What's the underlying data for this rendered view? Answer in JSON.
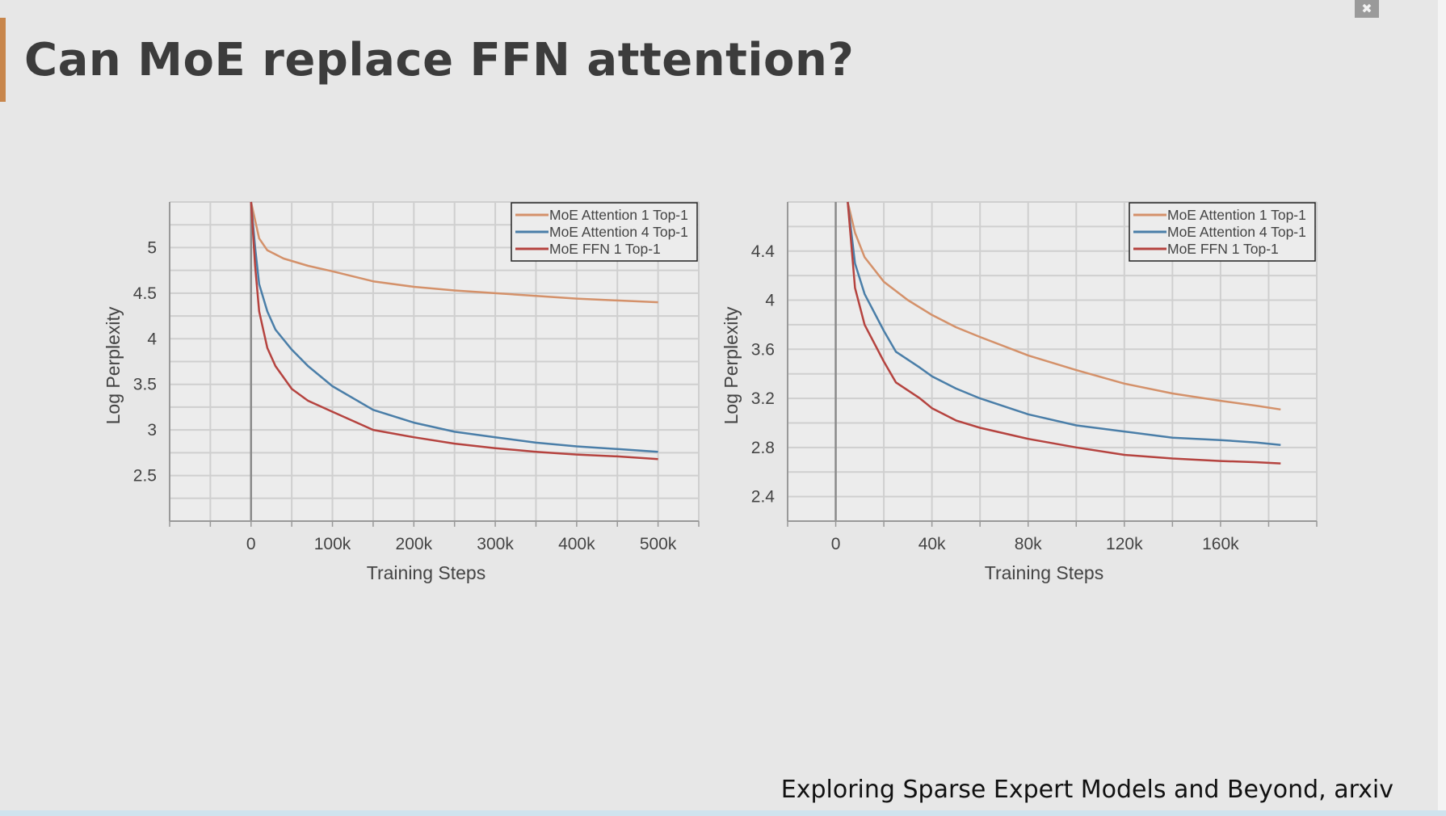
{
  "slide": {
    "title": "Can MoE replace FFN attention?",
    "citation": "Exploring Sparse Expert Models and Beyond, arxiv",
    "accent_color": "#c8864c",
    "fullscreen_icon": "exit-fullscreen-icon"
  },
  "chart_data": [
    {
      "type": "line",
      "xlabel": "Training Steps",
      "ylabel": "Log Perplexity",
      "xlim": [
        -100000,
        550000
      ],
      "ylim": [
        2.0,
        5.5
      ],
      "xticks": [
        0,
        100000,
        200000,
        300000,
        400000,
        500000
      ],
      "xtick_labels": [
        "0",
        "100k",
        "200k",
        "300k",
        "400k",
        "500k"
      ],
      "yticks": [
        2.5,
        3,
        3.5,
        4,
        4.5,
        5
      ],
      "ytick_labels": [
        "2.5",
        "3",
        "3.5",
        "4",
        "4.5",
        "5"
      ],
      "grid": true,
      "legend_position": "top-right",
      "series": [
        {
          "name": "MoE Attention 1 Top-1",
          "color": "#d4916a",
          "x": [
            0,
            5000,
            10000,
            20000,
            40000,
            70000,
            100000,
            150000,
            200000,
            250000,
            300000,
            350000,
            400000,
            450000,
            500000
          ],
          "y": [
            5.5,
            5.3,
            5.1,
            4.97,
            4.88,
            4.8,
            4.74,
            4.63,
            4.57,
            4.53,
            4.5,
            4.47,
            4.44,
            4.42,
            4.4
          ]
        },
        {
          "name": "MoE Attention 4 Top-1",
          "color": "#4a7ea8",
          "x": [
            0,
            5000,
            10000,
            20000,
            30000,
            50000,
            70000,
            100000,
            150000,
            200000,
            250000,
            300000,
            350000,
            400000,
            450000,
            500000
          ],
          "y": [
            5.5,
            5.0,
            4.6,
            4.3,
            4.1,
            3.88,
            3.7,
            3.48,
            3.22,
            3.08,
            2.98,
            2.92,
            2.86,
            2.82,
            2.79,
            2.76
          ]
        },
        {
          "name": "MoE FFN 1 Top-1",
          "color": "#b5433f",
          "x": [
            0,
            5000,
            10000,
            20000,
            30000,
            50000,
            70000,
            100000,
            150000,
            200000,
            250000,
            300000,
            350000,
            400000,
            450000,
            500000
          ],
          "y": [
            5.5,
            4.8,
            4.3,
            3.9,
            3.7,
            3.45,
            3.32,
            3.2,
            3.0,
            2.92,
            2.85,
            2.8,
            2.76,
            2.73,
            2.71,
            2.68
          ]
        }
      ]
    },
    {
      "type": "line",
      "xlabel": "Training Steps",
      "ylabel": "Log Perplexity",
      "xlim": [
        -20000,
        200000
      ],
      "ylim": [
        2.2,
        4.8
      ],
      "xticks": [
        0,
        40000,
        80000,
        120000,
        160000
      ],
      "xtick_labels": [
        "0",
        "40k",
        "80k",
        "120k",
        "160k"
      ],
      "yticks": [
        2.4,
        2.8,
        3.2,
        3.6,
        4.0,
        4.4
      ],
      "ytick_labels": [
        "2.4",
        "2.8",
        "3.2",
        "3.6",
        "4",
        "4.4"
      ],
      "grid": true,
      "legend_position": "top-right",
      "series": [
        {
          "name": "MoE Attention 1 Top-1",
          "color": "#d4916a",
          "x": [
            5000,
            8000,
            12000,
            20000,
            30000,
            40000,
            50000,
            60000,
            80000,
            100000,
            120000,
            140000,
            160000,
            175000,
            185000
          ],
          "y": [
            4.8,
            4.55,
            4.35,
            4.15,
            4.0,
            3.88,
            3.78,
            3.7,
            3.55,
            3.43,
            3.32,
            3.24,
            3.18,
            3.14,
            3.11
          ]
        },
        {
          "name": "MoE Attention 4 Top-1",
          "color": "#4a7ea8",
          "x": [
            5000,
            8000,
            12000,
            20000,
            25000,
            35000,
            40000,
            50000,
            60000,
            80000,
            100000,
            120000,
            140000,
            160000,
            175000,
            185000
          ],
          "y": [
            4.8,
            4.3,
            4.05,
            3.75,
            3.58,
            3.45,
            3.38,
            3.28,
            3.2,
            3.07,
            2.98,
            2.93,
            2.88,
            2.86,
            2.84,
            2.82
          ]
        },
        {
          "name": "MoE FFN 1 Top-1",
          "color": "#b5433f",
          "x": [
            5000,
            8000,
            12000,
            20000,
            25000,
            35000,
            40000,
            50000,
            60000,
            80000,
            100000,
            120000,
            140000,
            160000,
            175000,
            185000
          ],
          "y": [
            4.8,
            4.1,
            3.8,
            3.5,
            3.33,
            3.2,
            3.12,
            3.02,
            2.96,
            2.87,
            2.8,
            2.74,
            2.71,
            2.69,
            2.68,
            2.67
          ]
        }
      ]
    }
  ]
}
